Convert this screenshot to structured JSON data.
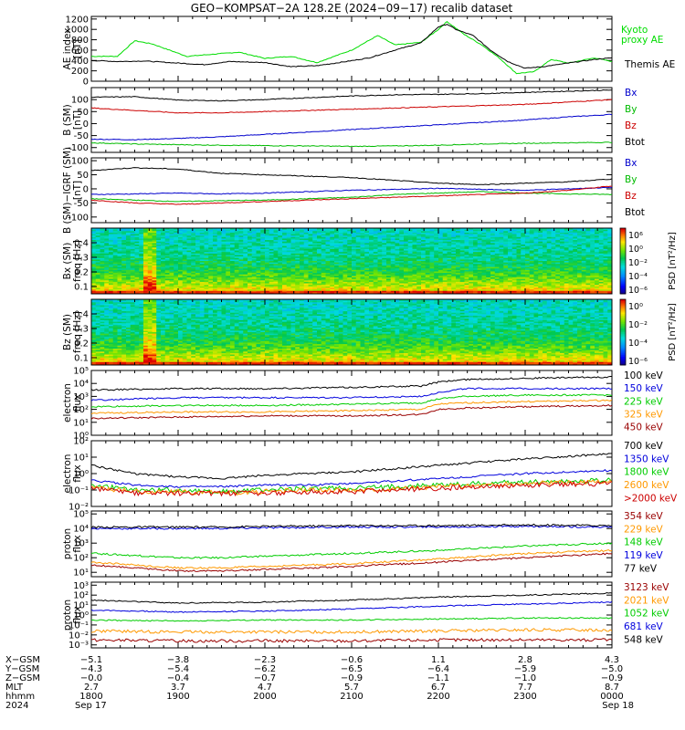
{
  "title": "GEO−KOMPSAT−2A 128.2E (2024−09−17) recalib dataset",
  "chart_data": [
    {
      "type": "line",
      "ylabel": [
        "AE index",
        "[nT]"
      ],
      "yticks": [
        "0",
        "200",
        "400",
        "600",
        "800",
        "1000",
        "1200"
      ],
      "ylim": [
        0,
        1250
      ],
      "series": [
        {
          "name": "Kyoto proxy AE",
          "label_lines": [
            "Kyoto",
            "proxy AE"
          ],
          "color": "#00dd00",
          "x": [
            18.0,
            18.3,
            18.5,
            18.7,
            18.9,
            19.1,
            19.4,
            19.7,
            20.0,
            20.3,
            20.6,
            20.8,
            21.0,
            21.3,
            21.5,
            21.8,
            22.0,
            22.1,
            22.3,
            22.5,
            22.7,
            22.9,
            23.1,
            23.3,
            23.5,
            23.8,
            24.0
          ],
          "y": [
            480,
            480,
            780,
            720,
            600,
            480,
            520,
            560,
            440,
            480,
            360,
            480,
            600,
            880,
            700,
            750,
            1000,
            1150,
            900,
            700,
            450,
            150,
            180,
            420,
            350,
            450,
            380
          ]
        },
        {
          "name": "Themis AE",
          "color": "#000000",
          "x": [
            18.0,
            18.3,
            18.6,
            19.0,
            19.3,
            19.6,
            20.0,
            20.3,
            20.6,
            20.9,
            21.2,
            21.5,
            21.8,
            22.0,
            22.1,
            22.2,
            22.4,
            22.6,
            22.8,
            23.0,
            23.2,
            23.5,
            23.8,
            24.0
          ],
          "y": [
            400,
            380,
            390,
            350,
            320,
            380,
            360,
            280,
            300,
            370,
            450,
            600,
            740,
            1050,
            1100,
            1000,
            880,
            600,
            380,
            250,
            280,
            350,
            420,
            450
          ]
        }
      ]
    },
    {
      "type": "line",
      "ylabel": [
        "B (SM)",
        "[nT]"
      ],
      "yticks": [
        "-100",
        "-50",
        "0",
        "50",
        "100"
      ],
      "ylim": [
        -120,
        150
      ],
      "series": [
        {
          "name": "Bx",
          "color": "#0000cc",
          "x": [
            18.0,
            18.5,
            19.0,
            19.5,
            20.0,
            20.5,
            21.0,
            21.5,
            22.0,
            22.5,
            23.0,
            23.5,
            24.0
          ],
          "y": [
            -65,
            -67,
            -62,
            -55,
            -45,
            -35,
            -25,
            -15,
            -5,
            5,
            15,
            28,
            38
          ]
        },
        {
          "name": "By",
          "color": "#00bb00",
          "x": [
            18.0,
            18.5,
            19.0,
            19.5,
            20.0,
            20.5,
            21.0,
            21.5,
            22.0,
            22.5,
            23.0,
            23.5,
            24.0
          ],
          "y": [
            -80,
            -85,
            -88,
            -90,
            -92,
            -93,
            -95,
            -93,
            -90,
            -85,
            -82,
            -80,
            -78
          ]
        },
        {
          "name": "Bz",
          "color": "#cc0000",
          "x": [
            18.0,
            18.5,
            19.0,
            19.5,
            20.0,
            20.5,
            21.0,
            21.5,
            22.0,
            22.5,
            23.0,
            23.5,
            24.0
          ],
          "y": [
            65,
            55,
            45,
            45,
            50,
            55,
            60,
            65,
            70,
            75,
            80,
            90,
            100
          ]
        },
        {
          "name": "Btot",
          "color": "#000000",
          "x": [
            18.0,
            18.5,
            19.0,
            19.5,
            20.0,
            20.5,
            21.0,
            21.5,
            22.0,
            22.5,
            23.0,
            23.5,
            24.0
          ],
          "y": [
            110,
            112,
            98,
            95,
            100,
            108,
            115,
            120,
            122,
            125,
            130,
            135,
            140
          ]
        }
      ]
    },
    {
      "type": "line",
      "ylabel": [
        "B (SM)−IGRF (SM)",
        "[nT]"
      ],
      "yticks": [
        "-100",
        "-50",
        "0",
        "50",
        "100"
      ],
      "ylim": [
        -120,
        110
      ],
      "series": [
        {
          "name": "Bx",
          "color": "#0000cc",
          "x": [
            18.0,
            18.5,
            19.0,
            19.5,
            20.0,
            20.5,
            21.0,
            21.5,
            22.0,
            22.5,
            23.0,
            23.5,
            24.0
          ],
          "y": [
            -20,
            -18,
            -15,
            -18,
            -15,
            -10,
            -5,
            -2,
            2,
            -2,
            -5,
            0,
            5
          ]
        },
        {
          "name": "By",
          "color": "#00bb00",
          "x": [
            18.0,
            18.5,
            19.0,
            19.5,
            20.0,
            20.5,
            21.0,
            21.5,
            22.0,
            22.5,
            23.0,
            23.5,
            24.0
          ],
          "y": [
            -35,
            -40,
            -45,
            -42,
            -40,
            -35,
            -30,
            -20,
            -15,
            -10,
            -15,
            -18,
            -20
          ]
        },
        {
          "name": "Bz",
          "color": "#cc0000",
          "x": [
            18.0,
            18.5,
            19.0,
            19.5,
            20.0,
            20.5,
            21.0,
            21.5,
            22.0,
            22.5,
            23.0,
            23.5,
            24.0
          ],
          "y": [
            -40,
            -50,
            -55,
            -50,
            -45,
            -40,
            -35,
            -30,
            -25,
            -20,
            -15,
            -5,
            10
          ]
        },
        {
          "name": "Btot",
          "color": "#000000",
          "x": [
            18.0,
            18.5,
            19.0,
            19.5,
            20.0,
            20.5,
            21.0,
            21.5,
            22.0,
            22.5,
            23.0,
            23.5,
            24.0
          ],
          "y": [
            65,
            75,
            70,
            55,
            50,
            45,
            40,
            30,
            20,
            15,
            20,
            25,
            35
          ]
        }
      ]
    },
    {
      "type": "heatmap",
      "ylabel": [
        "Bx (SM)",
        "freq [Hz]"
      ],
      "yticks": [
        "0.1",
        "0.2",
        "0.3",
        "0.4"
      ],
      "ylim": [
        0.05,
        0.5
      ],
      "colorbar": {
        "label": "PSD [nT²/Hz]",
        "ticks": [
          "10⁶",
          "10⁰",
          "10⁻²",
          "10⁻⁴",
          "10⁻⁶"
        ]
      }
    },
    {
      "type": "heatmap",
      "ylabel": [
        "Bz (SM)",
        "freq [Hz]"
      ],
      "yticks": [
        "0.1",
        "0.2",
        "0.3",
        "0.4"
      ],
      "ylim": [
        0.05,
        0.5
      ],
      "colorbar": {
        "label": "PSD [nT²/Hz]",
        "ticks": [
          "10⁰",
          "10⁻²",
          "10⁻⁴",
          "10⁻⁶"
        ]
      }
    },
    {
      "type": "line",
      "log": true,
      "ylabel": [
        "electron",
        "flux"
      ],
      "yticks": [
        "10⁰",
        "10¹",
        "10²",
        "10³",
        "10⁴",
        "10⁵"
      ],
      "ylim_exp": [
        0,
        5
      ],
      "series": [
        {
          "name": "100 keV",
          "color": "#000000",
          "x": [
            18,
            19,
            20,
            21,
            21.8,
            22,
            22.3,
            23,
            24
          ],
          "y": [
            3.5,
            3.6,
            3.6,
            3.7,
            3.8,
            4.1,
            4.3,
            4.4,
            4.5
          ]
        },
        {
          "name": "150 keV",
          "color": "#0000dd",
          "x": [
            18,
            19,
            20,
            21,
            21.8,
            22,
            22.3,
            23,
            24
          ],
          "y": [
            2.7,
            2.9,
            2.9,
            2.9,
            3.0,
            3.3,
            3.6,
            3.6,
            3.6
          ]
        },
        {
          "name": "225 keV",
          "color": "#00cc00",
          "x": [
            18,
            19,
            20,
            21,
            21.8,
            22,
            22.3,
            23,
            24
          ],
          "y": [
            2.2,
            2.3,
            2.3,
            2.4,
            2.5,
            2.8,
            3.0,
            3.1,
            3.1
          ]
        },
        {
          "name": "325 keV",
          "color": "#ff9900",
          "x": [
            18,
            19,
            20,
            21,
            21.8,
            22,
            22.3,
            23,
            24
          ],
          "y": [
            1.7,
            1.8,
            1.8,
            1.9,
            2.0,
            2.4,
            2.5,
            2.6,
            2.7
          ]
        },
        {
          "name": "450 keV",
          "color": "#990000",
          "x": [
            18,
            19,
            20,
            21,
            21.8,
            22,
            22.3,
            23,
            24
          ],
          "y": [
            1.3,
            1.4,
            1.5,
            1.5,
            1.6,
            2.0,
            2.1,
            2.2,
            2.3
          ]
        }
      ]
    },
    {
      "type": "line",
      "log": true,
      "ylabel": [
        "electron",
        "flux"
      ],
      "yticks": [
        "10⁻²",
        "10⁻¹",
        "10⁰",
        "10¹",
        "10²"
      ],
      "ylim_exp": [
        -2,
        2
      ],
      "series": [
        {
          "name": "700 keV",
          "color": "#000000",
          "x": [
            18,
            18.5,
            19,
            19.5,
            20,
            20.5,
            21,
            22,
            23,
            24
          ],
          "y": [
            0.5,
            0.0,
            -0.2,
            -0.3,
            -0.1,
            0.0,
            0.1,
            0.5,
            0.9,
            1.2
          ]
        },
        {
          "name": "1350 keV",
          "color": "#0000dd",
          "x": [
            18,
            18.5,
            19,
            19.5,
            20,
            20.5,
            21,
            22,
            23,
            24
          ],
          "y": [
            -0.4,
            -0.7,
            -0.8,
            -0.8,
            -0.7,
            -0.7,
            -0.6,
            -0.3,
            0.0,
            0.2
          ]
        },
        {
          "name": "1800 keV",
          "color": "#00cc00",
          "x": [
            18,
            18.5,
            19,
            19.5,
            20,
            20.5,
            21,
            22,
            23,
            24
          ],
          "y": [
            -0.7,
            -1.0,
            -1.0,
            -1.1,
            -1.0,
            -0.9,
            -0.9,
            -0.7,
            -0.5,
            -0.4
          ]
        },
        {
          "name": "2600 keV",
          "color": "#ff9900",
          "x": [
            18,
            18.5,
            19,
            19.5,
            20,
            20.5,
            21,
            22,
            23,
            24
          ],
          "y": [
            -0.8,
            -1.1,
            -1.1,
            -1.2,
            -1.1,
            -1.0,
            -1.0,
            -0.8,
            -0.6,
            -0.5
          ]
        },
        {
          "name": ">2000 keV",
          "color": "#cc0000",
          "x": [
            18,
            18.5,
            19,
            19.5,
            20,
            20.5,
            21,
            22,
            23,
            24
          ],
          "y": [
            -0.9,
            -1.2,
            -1.2,
            -1.2,
            -1.2,
            -1.1,
            -1.1,
            -0.9,
            -0.7,
            -0.6
          ]
        }
      ]
    },
    {
      "type": "line",
      "log": true,
      "ylabel": [
        "proton",
        "flux"
      ],
      "yticks": [
        "10¹",
        "10²",
        "10³",
        "10⁴",
        "10⁵"
      ],
      "ylim_exp": [
        0.7,
        5.2
      ],
      "series": [
        {
          "name": "354 keV",
          "color": "#990000",
          "x": [
            18,
            19,
            19.5,
            20,
            21,
            22,
            23,
            24
          ],
          "y": [
            1.5,
            1.1,
            1.1,
            1.2,
            1.4,
            1.7,
            2.0,
            2.3
          ]
        },
        {
          "name": "229 keV",
          "color": "#ff9900",
          "x": [
            18,
            19,
            19.5,
            20,
            21,
            22,
            23,
            24
          ],
          "y": [
            1.7,
            1.3,
            1.3,
            1.4,
            1.6,
            1.9,
            2.3,
            2.5
          ]
        },
        {
          "name": "148 keV",
          "color": "#00cc00",
          "x": [
            18,
            19,
            19.5,
            20,
            21,
            22,
            23,
            24
          ],
          "y": [
            2.3,
            2.0,
            2.0,
            2.1,
            2.3,
            2.5,
            2.8,
            3.0
          ]
        },
        {
          "name": "119 keV",
          "color": "#0000dd",
          "x": [
            18,
            19,
            19.5,
            20,
            21,
            22,
            23,
            24
          ],
          "y": [
            4.0,
            4.0,
            4.0,
            4.05,
            4.1,
            4.1,
            4.15,
            4.1
          ]
        },
        {
          "name": "77 keV",
          "color": "#000000",
          "x": [
            18,
            19,
            19.5,
            20,
            21,
            22,
            23,
            24
          ],
          "y": [
            4.1,
            4.1,
            4.1,
            4.15,
            4.2,
            4.2,
            4.25,
            4.2
          ]
        }
      ]
    },
    {
      "type": "line",
      "log": true,
      "ylabel": [
        "proton",
        "flux"
      ],
      "yticks": [
        "10⁻³",
        "10⁻²",
        "10⁻¹",
        "10⁰",
        "10¹",
        "10²",
        "10³"
      ],
      "ylim_exp": [
        -3.3,
        3.3
      ],
      "series": [
        {
          "name": "3123 keV",
          "color": "#000000",
          "x": [
            18,
            19,
            20,
            21,
            22,
            23,
            24
          ],
          "y": [
            1.5,
            1.2,
            1.3,
            1.5,
            1.8,
            2.0,
            2.2
          ]
        },
        {
          "name": "2021 keV",
          "color": "#0000dd",
          "x": [
            18,
            19,
            20,
            21,
            22,
            23,
            24
          ],
          "y": [
            0.5,
            0.3,
            0.4,
            0.6,
            0.9,
            1.1,
            1.3
          ]
        },
        {
          "name": "1052 keV",
          "color": "#00cc00",
          "x": [
            18,
            19,
            20,
            21,
            22,
            23,
            24
          ],
          "y": [
            -0.5,
            -0.6,
            -0.5,
            -0.5,
            -0.4,
            -0.3,
            -0.3
          ]
        },
        {
          "name": "681 keV",
          "color": "#ff9900",
          "x": [
            18,
            19,
            20,
            21,
            22,
            23,
            24
          ],
          "y": [
            -1.6,
            -1.7,
            -1.7,
            -1.7,
            -1.6,
            -1.5,
            -1.5
          ]
        },
        {
          "name": "548 keV",
          "color": "#990000",
          "x": [
            18,
            19,
            20,
            21,
            22,
            23,
            24
          ],
          "y": [
            -2.5,
            -2.6,
            -2.6,
            -2.6,
            -2.5,
            -2.5,
            -2.5
          ]
        }
      ],
      "legend_colors": [
        "#990000",
        "#ff9900",
        "#00cc00",
        "#0000dd",
        "#000000"
      ]
    }
  ],
  "ephemeris": {
    "labels": [
      "X−GSM",
      "Y−GSM",
      "Z−GSM",
      "MLT",
      "hhmm",
      "2024"
    ],
    "columns": [
      {
        "x": 18.0,
        "values": [
          "−5.1",
          "−4.3",
          "−0.0",
          "2.7",
          "1800",
          "Sep 17"
        ]
      },
      {
        "x": 19.0,
        "values": [
          "−3.8",
          "−5.4",
          "−0.4",
          "3.7",
          "1900",
          ""
        ]
      },
      {
        "x": 20.0,
        "values": [
          "−2.3",
          "−6.2",
          "−0.7",
          "4.7",
          "2000",
          ""
        ]
      },
      {
        "x": 21.0,
        "values": [
          "−0.6",
          "−6.5",
          "−0.9",
          "5.7",
          "2100",
          ""
        ]
      },
      {
        "x": 22.0,
        "values": [
          "1.1",
          "−6.4",
          "−1.1",
          "6.7",
          "2200",
          ""
        ]
      },
      {
        "x": 23.0,
        "values": [
          "2.8",
          "−5.9",
          "−1.0",
          "7.7",
          "2300",
          ""
        ]
      },
      {
        "x": 24.0,
        "values": [
          "4.3",
          "−5.0",
          "−0.9",
          "8.7",
          "0000",
          "Sep 18"
        ]
      }
    ]
  }
}
